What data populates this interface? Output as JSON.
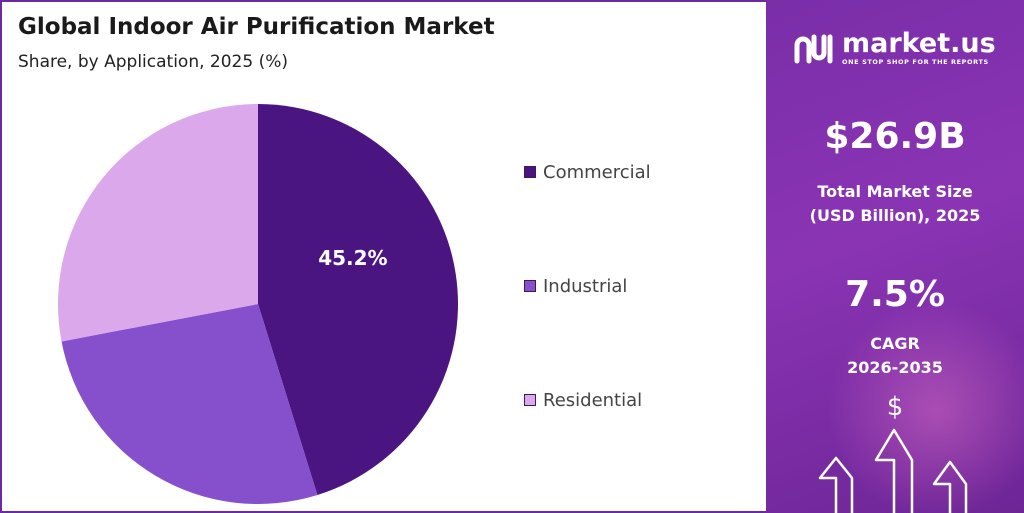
{
  "header": {
    "title": "Global Indoor Air Purification Market",
    "subtitle": "Share, by Application, 2025 (%)"
  },
  "chart_data": {
    "type": "pie",
    "title": "Global Indoor Air Purification Market",
    "subtitle": "Share, by Application, 2025 (%)",
    "categories": [
      "Commercial",
      "Industrial",
      "Residential"
    ],
    "values": [
      45.2,
      26.8,
      28.0
    ],
    "data_labels": [
      "45.2%",
      "",
      ""
    ],
    "colors": [
      "#4a1580",
      "#8650cc",
      "#dca8ec"
    ],
    "legend_position": "right"
  },
  "sidebar": {
    "brand_name": "market.us",
    "brand_tagline": "ONE STOP SHOP FOR THE REPORTS",
    "market_size_value": "$26.9B",
    "market_size_label_line1": "Total Market Size",
    "market_size_label_line2": "(USD Billion), 2025",
    "cagr_value": "7.5%",
    "cagr_label_line1": "CAGR",
    "cagr_label_line2": "2026-2035",
    "dollar_symbol": "$",
    "background_color": "#7a2ea8",
    "icons": [
      "market-us-logo-icon",
      "dollar-icon",
      "growth-arrows-icon"
    ]
  }
}
